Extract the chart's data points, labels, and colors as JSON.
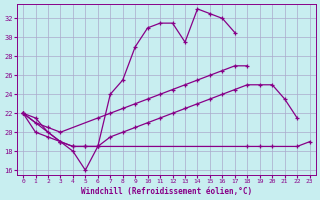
{
  "xlabel": "Windchill (Refroidissement éolien,°C)",
  "background_color": "#c8eef0",
  "grid_color": "#aaaacc",
  "line_color": "#880088",
  "xlim": [
    -0.5,
    23.5
  ],
  "ylim": [
    15.5,
    33.5
  ],
  "yticks": [
    16,
    18,
    20,
    22,
    24,
    26,
    28,
    30,
    32
  ],
  "xticks": [
    0,
    1,
    2,
    3,
    4,
    5,
    6,
    7,
    8,
    9,
    10,
    11,
    12,
    13,
    14,
    15,
    16,
    17,
    18,
    19,
    20,
    21,
    22,
    23
  ],
  "curve1_x": [
    0,
    1,
    2,
    3,
    4,
    5,
    6,
    7,
    8,
    9,
    10,
    11,
    12,
    13,
    14,
    15,
    16,
    17,
    18,
    19,
    20,
    21,
    22,
    23
  ],
  "curve1_y": [
    22.0,
    21.5,
    20.0,
    19.0,
    18.0,
    16.0,
    18.5,
    24.0,
    25.5,
    29.0,
    31.0,
    31.5,
    31.5,
    29.5,
    33.0,
    32.5,
    32.0,
    30.5,
    null,
    null,
    null,
    null,
    null,
    null
  ],
  "curve2_x": [
    0,
    1,
    2,
    3,
    6,
    7,
    8,
    9,
    10,
    11,
    12,
    13,
    14,
    15,
    16,
    17,
    18,
    19,
    20,
    21,
    22,
    23
  ],
  "curve2_y": [
    22.0,
    21.0,
    20.5,
    20.0,
    21.5,
    22.0,
    22.5,
    23.0,
    23.5,
    24.0,
    24.5,
    25.0,
    25.5,
    26.0,
    26.5,
    27.0,
    27.0,
    null,
    null,
    null,
    null,
    null
  ],
  "curve3_x": [
    0,
    1,
    2,
    3,
    4,
    5,
    6,
    7,
    8,
    9,
    10,
    11,
    12,
    13,
    14,
    15,
    16,
    17,
    18,
    19,
    20,
    21,
    22,
    23
  ],
  "curve3_y": [
    22.0,
    20.0,
    19.5,
    19.0,
    18.5,
    18.5,
    18.5,
    19.5,
    20.0,
    20.5,
    21.0,
    21.5,
    22.0,
    22.5,
    23.0,
    23.5,
    24.0,
    24.5,
    25.0,
    25.0,
    25.0,
    23.5,
    21.5,
    null
  ],
  "curve4_x": [
    0,
    3,
    4,
    5,
    6,
    18,
    19,
    20,
    22,
    23
  ],
  "curve4_y": [
    22.0,
    19.0,
    18.5,
    18.5,
    18.5,
    18.5,
    18.5,
    18.5,
    18.5,
    19.0
  ]
}
